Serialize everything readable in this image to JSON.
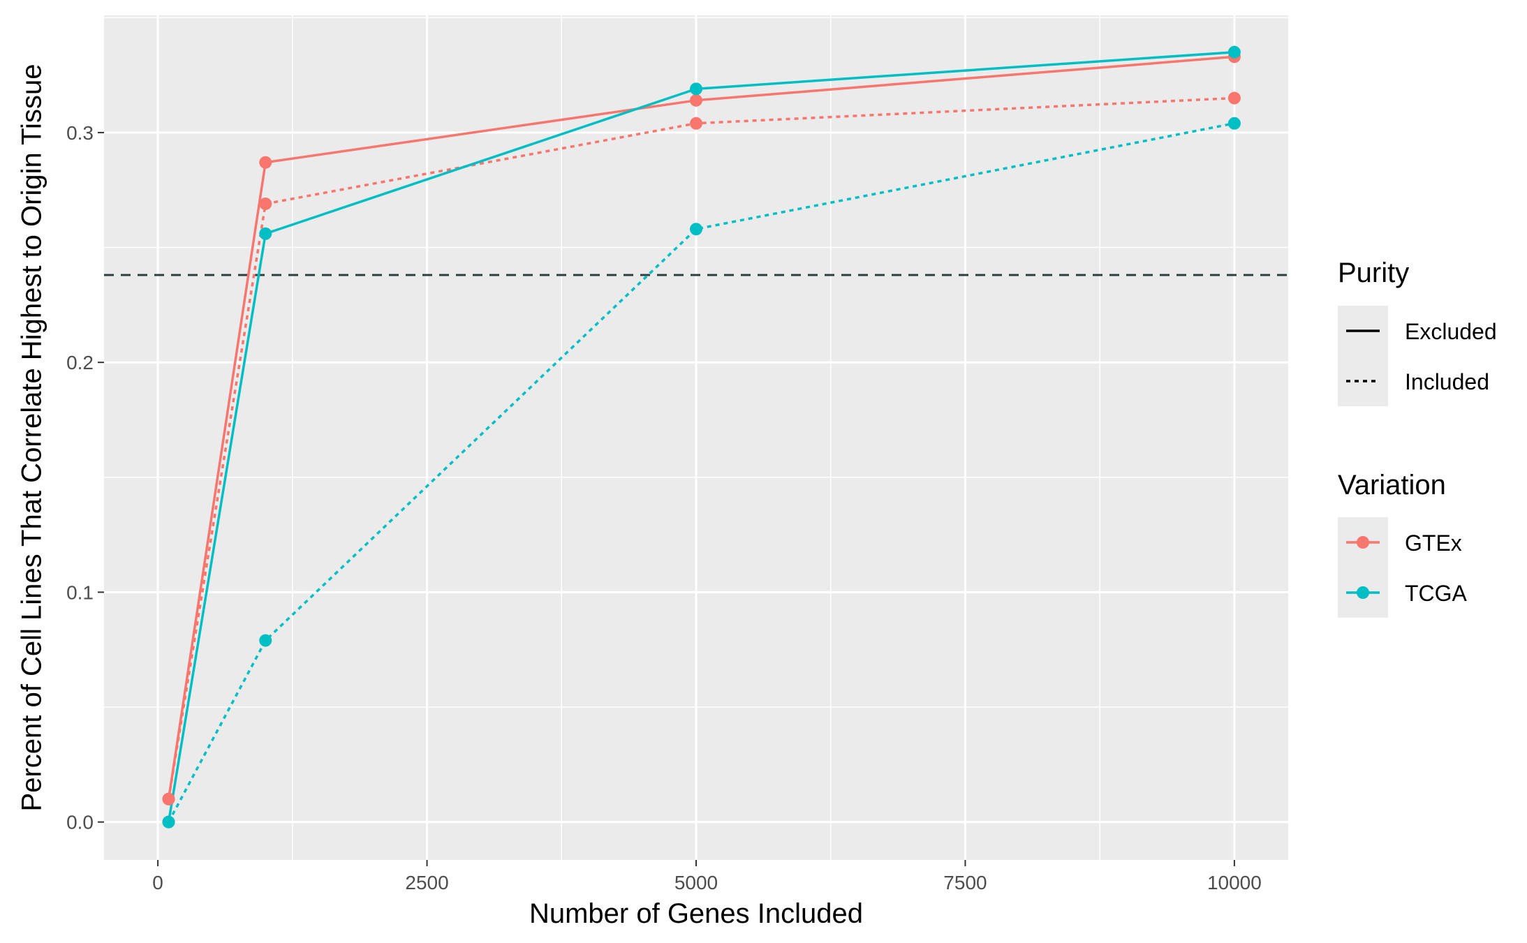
{
  "chart_data": {
    "type": "line",
    "xlabel": "Number of Genes Included",
    "ylabel": "Percent of Cell Lines That Correlate Highest to Origin Tissue",
    "xlim": [
      -500,
      10500
    ],
    "ylim": [
      -0.0165,
      0.351
    ],
    "x_ticks": [
      0,
      2500,
      5000,
      7500,
      10000
    ],
    "x_tick_labels": [
      "0",
      "2500",
      "5000",
      "7500",
      "10000"
    ],
    "y_ticks": [
      0.0,
      0.1,
      0.2,
      0.3
    ],
    "y_tick_labels": [
      "0.0",
      "0.1",
      "0.2",
      "0.3"
    ],
    "reference_line": {
      "y": 0.238,
      "style": "dashed",
      "color": "#2f3f3f"
    },
    "colors": {
      "GTEx": "#F8766D",
      "TCGA": "#00BFC4",
      "panel_bg": "#EBEBEB",
      "grid": "#FFFFFF"
    },
    "series": [
      {
        "variation": "GTEx",
        "purity": "Excluded",
        "x": [
          100,
          1000,
          5000,
          10000
        ],
        "y": [
          0.01,
          0.287,
          0.314,
          0.333
        ]
      },
      {
        "variation": "GTEx",
        "purity": "Included",
        "x": [
          100,
          1000,
          5000,
          10000
        ],
        "y": [
          0.01,
          0.269,
          0.304,
          0.315
        ]
      },
      {
        "variation": "TCGA",
        "purity": "Excluded",
        "x": [
          100,
          1000,
          5000,
          10000
        ],
        "y": [
          0.0,
          0.256,
          0.319,
          0.335
        ]
      },
      {
        "variation": "TCGA",
        "purity": "Included",
        "x": [
          100,
          1000,
          5000,
          10000
        ],
        "y": [
          0.0,
          0.079,
          0.258,
          0.304
        ]
      }
    ],
    "legends": [
      {
        "title": "Purity",
        "entries": [
          "Excluded",
          "Included"
        ]
      },
      {
        "title": "Variation",
        "entries": [
          "GTEx",
          "TCGA"
        ]
      }
    ],
    "legend_position": "right",
    "grid": true
  }
}
